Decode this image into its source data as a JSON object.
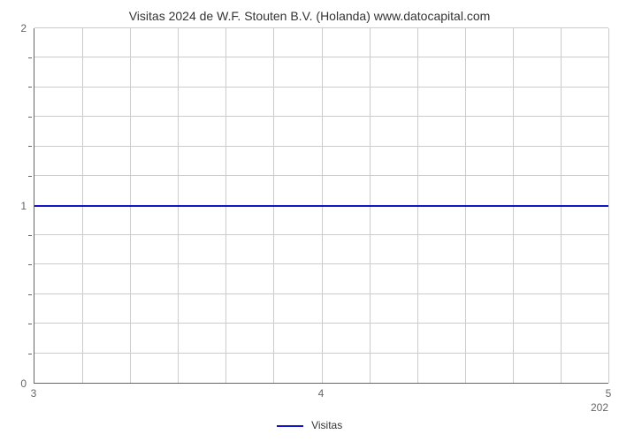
{
  "chart": {
    "type": "line",
    "title": "Visitas 2024 de W.F. Stouten B.V. (Holanda) www.datocapital.com",
    "title_fontsize": 14,
    "title_color": "#333333",
    "background_color": "#ffffff",
    "grid_color": "#cccccc",
    "axis_color": "#666666",
    "tick_fontsize": 12,
    "tick_color": "#666666",
    "x": {
      "min": 3,
      "max": 5,
      "ticks": [
        3,
        4,
        5
      ],
      "vgrid_count": 12,
      "extra_right_label": "202"
    },
    "y": {
      "min": 0,
      "max": 2,
      "ticks": [
        0,
        1,
        2
      ],
      "hgrid_count": 12,
      "minor_tick_count": 12
    },
    "series": [
      {
        "name": "Visitas",
        "color": "#1414c8",
        "line_width": 2,
        "y_value": 1
      }
    ],
    "legend": {
      "label": "Visitas",
      "color": "#1414c8"
    }
  }
}
